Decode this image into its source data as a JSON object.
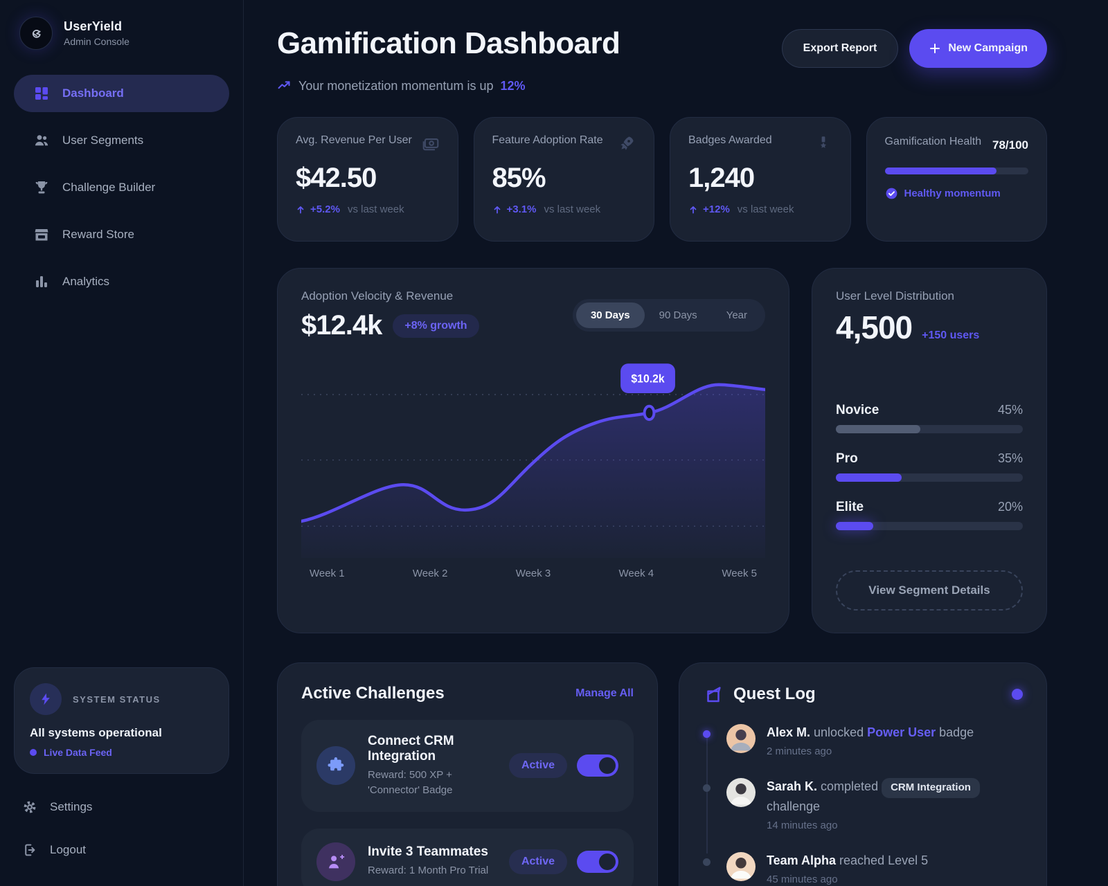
{
  "colors": {
    "accent": "#5b4bf0",
    "accent_text": "#665ef4",
    "page_bg": "#0c1322",
    "card_bg": "#1a2232"
  },
  "icons": [
    "logo-gamepad-icon",
    "dashboard-grid-icon",
    "users-icon",
    "trophy-icon",
    "storefront-icon",
    "bar-chart-icon",
    "bolt-icon",
    "gear-icon",
    "logout-icon",
    "trend-up-icon",
    "plus-icon",
    "banknote-icon",
    "rocket-icon",
    "medal-icon",
    "check-circle-icon",
    "arrow-up-icon",
    "puzzle-icon",
    "user-plus-icon",
    "quest-log-icon"
  ],
  "sidebar": {
    "brand": {
      "name": "UserYield",
      "subtitle": "Admin Console"
    },
    "nav": [
      {
        "label": "Dashboard",
        "icon": "dashboard-grid-icon",
        "active": true
      },
      {
        "label": "User Segments",
        "icon": "users-icon",
        "active": false
      },
      {
        "label": "Challenge Builder",
        "icon": "trophy-icon",
        "active": false
      },
      {
        "label": "Reward Store",
        "icon": "storefront-icon",
        "active": false
      },
      {
        "label": "Analytics",
        "icon": "bar-chart-icon",
        "active": false
      }
    ],
    "system_status": {
      "heading": "SYSTEM STATUS",
      "status": "All systems operational",
      "feed_label": "Live Data Feed"
    },
    "settings_label": "Settings",
    "logout_label": "Logout"
  },
  "header": {
    "title": "Gamification Dashboard",
    "subtitle": "Your monetization momentum is up",
    "subtitle_highlight": "12%",
    "export_label": "Export Report",
    "new_campaign_label": "New Campaign"
  },
  "stats": [
    {
      "title": "Avg. Revenue Per User",
      "icon": "banknote-icon",
      "value": "$42.50",
      "delta": "+5.2%",
      "note": "vs last week"
    },
    {
      "title": "Feature Adoption Rate",
      "icon": "rocket-icon",
      "value": "85%",
      "delta": "+3.1%",
      "note": "vs last week"
    },
    {
      "title": "Badges Awarded",
      "icon": "medal-icon",
      "value": "1,240",
      "delta": "+12%",
      "note": "vs last week"
    }
  ],
  "health": {
    "title": "Gamification Health",
    "score": "78/100",
    "progress_pct": 78,
    "status_label": "Healthy momentum"
  },
  "chart_data": {
    "type": "area",
    "title": "Adoption Velocity & Revenue",
    "current_value": "$12.4k",
    "growth_badge": "+8% growth",
    "tabs": [
      "30 Days",
      "90 Days",
      "Year"
    ],
    "active_tab": "30 Days",
    "x": [
      "Week 1",
      "Week 2",
      "Week 3",
      "Week 4",
      "Week 5"
    ],
    "series": [
      {
        "name": "Weekly revenue",
        "unit": "$k",
        "values": [
          4.0,
          6.6,
          5.4,
          10.2,
          12.4
        ]
      }
    ],
    "highlight": {
      "x": "Week 4",
      "label": "$10.2k"
    },
    "ylim": [
      0,
      14
    ],
    "grid": "dashed-horizontal",
    "legend": "none"
  },
  "distribution": {
    "title": "User Level Distribution",
    "total": "4,500",
    "delta": "+150 users",
    "levels": [
      {
        "label": "Novice",
        "pct_label": "45%",
        "pct": 45
      },
      {
        "label": "Pro",
        "pct_label": "35%",
        "pct": 35
      },
      {
        "label": "Elite",
        "pct_label": "20%",
        "pct": 20
      }
    ],
    "cta_label": "View Segment Details"
  },
  "challenges": {
    "title": "Active Challenges",
    "manage_label": "Manage All",
    "items": [
      {
        "icon": "puzzle-icon",
        "title": "Connect CRM Integration",
        "reward": "Reward: 500 XP + 'Connector' Badge",
        "status": "Active",
        "enabled": true
      },
      {
        "icon": "user-plus-icon",
        "title": "Invite 3 Teammates",
        "reward": "Reward: 1 Month Pro Trial",
        "status": "Active",
        "enabled": true
      }
    ]
  },
  "quest_log": {
    "title": "Quest Log",
    "items": [
      {
        "name": "Alex M.",
        "text1": "unlocked",
        "highlight": "Power User",
        "text2": "badge",
        "time": "2 minutes ago"
      },
      {
        "name": "Sarah K.",
        "text1": "completed",
        "chip": "CRM Integration",
        "text2": "challenge",
        "time": "14 minutes ago"
      },
      {
        "name": "Team Alpha",
        "text1": "reached Level 5",
        "text2": "",
        "time": "45 minutes ago"
      }
    ]
  }
}
